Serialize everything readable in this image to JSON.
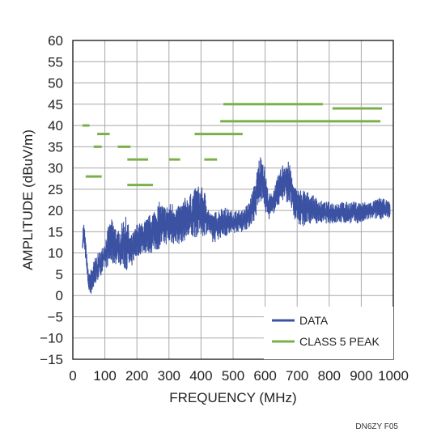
{
  "figure_id": "DN6ZY F05",
  "chart_data": {
    "type": "line",
    "xlabel": "FREQUENCY (MHz)",
    "ylabel": "AMPLITUDE (dBuV/m)",
    "xlim": [
      0,
      1000
    ],
    "ylim": [
      -15,
      60
    ],
    "x_ticks": [
      0,
      100,
      200,
      300,
      400,
      500,
      600,
      700,
      800,
      900,
      1000
    ],
    "y_ticks": [
      60,
      55,
      50,
      45,
      40,
      35,
      30,
      25,
      20,
      15,
      10,
      5,
      0,
      -5,
      -10,
      -15
    ],
    "x_tick_labels": [
      "0",
      "100",
      "200",
      "300",
      "400",
      "500",
      "600",
      "700",
      "800",
      "900",
      "1000"
    ],
    "y_tick_labels": [
      "60",
      "55",
      "50",
      "45",
      "40",
      "35",
      "30",
      "25",
      "20",
      "15",
      "10",
      "5",
      "0",
      "−5",
      "−10",
      "−15"
    ],
    "grid": true,
    "legend_placement": "bottom-right",
    "series": [
      {
        "name": "DATA",
        "color": "#3b52a3",
        "style": "noisy-band",
        "envelope": {
          "x": [
            30,
            33,
            38,
            45,
            50,
            55,
            60,
            70,
            80,
            90,
            100,
            110,
            120,
            130,
            140,
            150,
            160,
            170,
            180,
            190,
            200,
            215,
            230,
            250,
            270,
            290,
            310,
            330,
            350,
            370,
            390,
            410,
            425,
            435,
            450,
            470,
            490,
            510,
            530,
            550,
            570,
            580,
            590,
            600,
            610,
            620,
            630,
            640,
            650,
            660,
            670,
            680,
            690,
            700,
            710,
            720,
            740,
            760,
            780,
            800,
            820,
            850,
            880,
            900,
            930,
            960,
            990
          ],
          "upper": [
            12,
            18,
            15,
            8,
            5,
            6,
            7,
            9,
            10,
            11,
            13,
            16,
            18,
            17,
            15,
            16,
            19,
            18,
            14,
            15,
            17,
            17,
            18,
            20,
            22,
            21,
            22,
            21,
            23,
            24,
            26,
            25,
            20,
            19,
            20,
            21,
            20,
            20,
            20,
            22,
            27,
            32,
            34,
            30,
            24,
            24,
            26,
            28,
            30,
            32,
            32,
            30,
            26,
            25,
            25,
            25,
            24,
            23,
            22,
            22,
            22,
            22,
            22,
            22,
            22,
            23,
            22
          ],
          "lower": [
            10,
            12,
            10,
            4,
            1,
            0,
            1,
            2,
            4,
            5,
            6,
            7,
            7,
            7,
            8,
            7,
            6,
            6,
            6,
            8,
            9,
            10,
            10,
            10,
            11,
            12,
            12,
            12,
            13,
            13,
            14,
            14,
            15,
            12,
            13,
            14,
            14,
            15,
            15,
            16,
            18,
            21,
            22,
            20,
            18,
            18,
            20,
            21,
            22,
            22,
            22,
            21,
            17,
            18,
            16,
            16,
            17,
            17,
            17,
            17,
            17,
            17,
            17,
            17,
            18,
            18,
            18
          ]
        }
      },
      {
        "name": "CLASS 5 PEAK",
        "color": "#7ab04b",
        "style": "segments",
        "segments": [
          {
            "x0": 30,
            "x1": 52,
            "y": 40
          },
          {
            "x0": 40,
            "x1": 90,
            "y": 28
          },
          {
            "x0": 65,
            "x1": 90,
            "y": 35
          },
          {
            "x0": 76,
            "x1": 115,
            "y": 38
          },
          {
            "x0": 140,
            "x1": 180,
            "y": 35
          },
          {
            "x0": 170,
            "x1": 235,
            "y": 32
          },
          {
            "x0": 170,
            "x1": 250,
            "y": 26
          },
          {
            "x0": 300,
            "x1": 335,
            "y": 32
          },
          {
            "x0": 380,
            "x1": 530,
            "y": 38
          },
          {
            "x0": 410,
            "x1": 450,
            "y": 32
          },
          {
            "x0": 460,
            "x1": 960,
            "y": 41
          },
          {
            "x0": 470,
            "x1": 780,
            "y": 45
          },
          {
            "x0": 810,
            "x1": 965,
            "y": 44
          }
        ]
      }
    ]
  }
}
